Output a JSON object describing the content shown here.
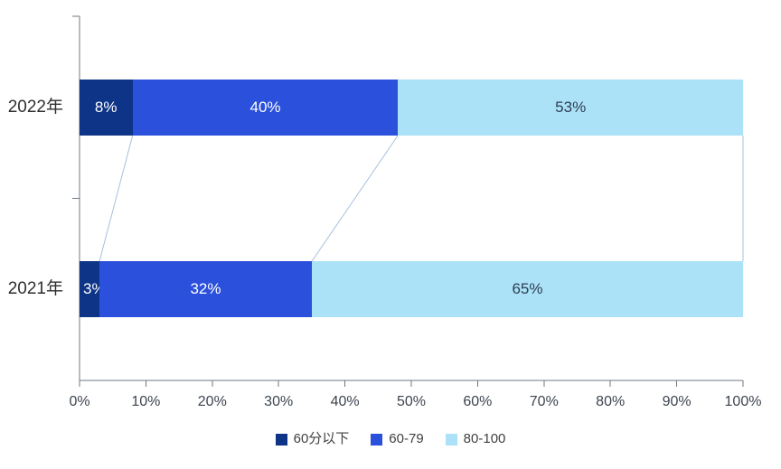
{
  "chart_data": {
    "type": "bar",
    "orientation": "horizontal",
    "stacked": true,
    "title": "",
    "xlabel": "",
    "ylabel": "",
    "xlim": [
      0,
      100
    ],
    "grid": false,
    "legend_position": "bottom",
    "connector_lines": true,
    "categories": [
      "2022年",
      "2021年"
    ],
    "series": [
      {
        "name": "60分以下",
        "values": [
          8,
          3
        ],
        "color": "#0D3487",
        "label_color": "#FFFFFF"
      },
      {
        "name": "60-79",
        "values": [
          40,
          32
        ],
        "color": "#2B50DB",
        "label_color": "#FFFFFF"
      },
      {
        "name": "80-100",
        "values": [
          53,
          65
        ],
        "color": "#ABE2F8",
        "label_color": "#2F3E50"
      }
    ],
    "data_labels": [
      [
        "8%",
        "40%",
        "53%"
      ],
      [
        "3%",
        "32%",
        "65%"
      ]
    ],
    "x_ticks": [
      "0%",
      "10%",
      "20%",
      "30%",
      "40%",
      "50%",
      "60%",
      "70%",
      "80%",
      "90%",
      "100%"
    ]
  },
  "colors": {
    "axis_line": "#6F7883",
    "tick_mark": "#6F7883",
    "tick_label": "#3D4450",
    "category_label": "#2F2F2F",
    "legend_label": "#404040",
    "connector": "#A7C0DD",
    "background": "#FFFFFF"
  }
}
